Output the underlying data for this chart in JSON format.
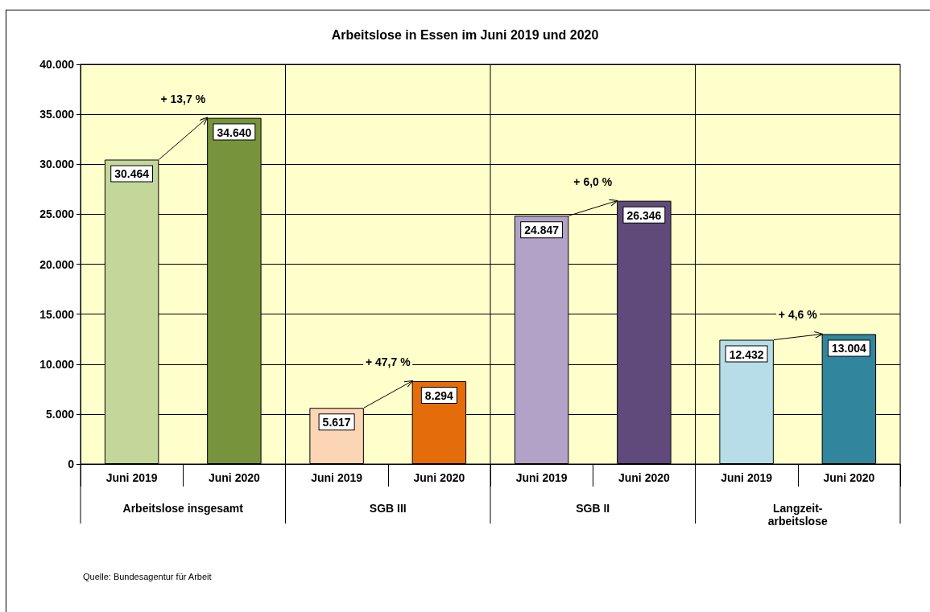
{
  "chart_data": {
    "type": "bar",
    "title": "Arbeitslose in Essen im Juni 2019 und 2020",
    "categories": [
      "Juni 2019",
      "Juni 2020",
      "Juni 2019",
      "Juni 2020",
      "Juni 2019",
      "Juni 2020",
      "Juni 2019",
      "Juni 2020"
    ],
    "values": [
      30464,
      34640,
      5617,
      8294,
      24847,
      26346,
      12432,
      13004
    ],
    "colors": [
      "#c4d79b",
      "#77933c",
      "#fcd5b5",
      "#e46c0a",
      "#b3a2c7",
      "#604a7b",
      "#b7dee8",
      "#31859c"
    ],
    "value_labels": [
      "30.464",
      "34.640",
      "5.617",
      "8.294",
      "24.847",
      "26.346",
      "12.432",
      "13.004"
    ],
    "ylim": [
      0,
      40000
    ],
    "yticks": [
      {
        "value": 0,
        "label": "0"
      },
      {
        "value": 5000,
        "label": "5.000"
      },
      {
        "value": 10000,
        "label": "10.000"
      },
      {
        "value": 15000,
        "label": "15.000"
      },
      {
        "value": 20000,
        "label": "20.000"
      },
      {
        "value": 25000,
        "label": "25.000"
      },
      {
        "value": 30000,
        "label": "30.000"
      },
      {
        "value": 35000,
        "label": "35.000"
      },
      {
        "value": 40000,
        "label": "40.000"
      }
    ],
    "grid": "y",
    "annotations": [
      "+ 13,7 %",
      "+ 47,7 %",
      "+ 6,0 %",
      "+ 4,6 %",
      "Arbeitslose insgesamt",
      "SGB III",
      "SGB II",
      "Langzeit-\narbeitslose",
      "Quelle:  Bundesagentur  für Arbeit"
    ]
  }
}
